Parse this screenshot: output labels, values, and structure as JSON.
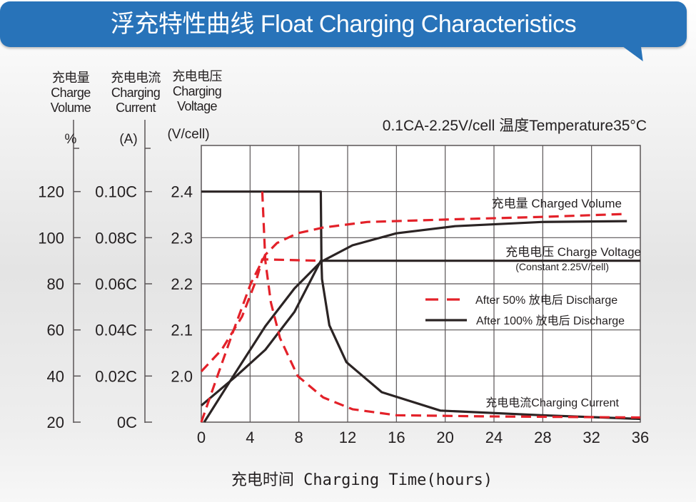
{
  "title": "浮充特性曲线 Float Charging Characteristics",
  "chart_data": {
    "type": "line",
    "title": "浮充特性曲线 Float Charging Characteristics",
    "condition": "0.1CA-2.25V/cell   温度Temperature35°C",
    "xlabel": "充电时间 Charging Time(hours)",
    "xlim": [
      0,
      36
    ],
    "xticks": [
      "0",
      "4",
      "8",
      "12",
      "16",
      "20",
      "24",
      "28",
      "32",
      "36"
    ],
    "grid": true,
    "axes": {
      "volume": {
        "label_lines": [
          "充电量",
          "Charge",
          "Volume"
        ],
        "unit": "%",
        "ylim": [
          20,
          140
        ],
        "ticks": [
          {
            "v": 120,
            "label": "120"
          },
          {
            "v": 100,
            "label": "100"
          },
          {
            "v": 80,
            "label": "80"
          },
          {
            "v": 60,
            "label": "60"
          },
          {
            "v": 40,
            "label": "40"
          },
          {
            "v": 20,
            "label": "20"
          }
        ]
      },
      "current": {
        "label_lines": [
          "充电电流",
          "Charging",
          "Current"
        ],
        "unit": "(A)",
        "ylim": [
          0,
          0.12
        ],
        "ticks": [
          {
            "v": 0.1,
            "label": "0.10C"
          },
          {
            "v": 0.08,
            "label": "0.08C"
          },
          {
            "v": 0.06,
            "label": "0.06C"
          },
          {
            "v": 0.04,
            "label": "0.04C"
          },
          {
            "v": 0.02,
            "label": "0.02C"
          },
          {
            "v": 0,
            "label": "0C"
          }
        ]
      },
      "voltage": {
        "label_lines": [
          "充电电压",
          "Charging",
          "Voltage"
        ],
        "unit": "(V/cell)",
        "ylim": [
          1.9,
          2.5
        ],
        "ticks": [
          {
            "v": 2.4,
            "label": "2.4"
          },
          {
            "v": 2.3,
            "label": "2.3"
          },
          {
            "v": 2.2,
            "label": "2.2"
          },
          {
            "v": 2.1,
            "label": "2.1"
          },
          {
            "v": 2.0,
            "label": "2.0"
          }
        ]
      }
    },
    "annotations": {
      "charged_volume": "充电量 Charged Volume",
      "charge_voltage": "充电电压 Charge Voltage",
      "constant": "(Constant 2.25V/cell)",
      "charging_current": "充电电流Charging Current"
    },
    "legend": {
      "placement": "center-right",
      "entries": [
        {
          "label": "After 50% 放电后 Discharge",
          "style": "dashed",
          "color": "#e32129"
        },
        {
          "label": "After 100% 放电后 Discharge",
          "style": "solid",
          "color": "#2b2424"
        }
      ]
    },
    "series": [
      {
        "group": "After 100%",
        "quantity": "current",
        "axis": "current",
        "style": "solid",
        "color": "#2b2424",
        "points": [
          [
            0,
            0.1
          ],
          [
            9.8,
            0.1
          ],
          [
            9.85,
            0.07
          ],
          [
            9.9,
            0.062
          ],
          [
            10.5,
            0.042
          ],
          [
            11.9,
            0.026
          ],
          [
            14.8,
            0.013
          ],
          [
            19.6,
            0.005
          ],
          [
            27.9,
            0.003
          ],
          [
            36,
            0.0014
          ]
        ]
      },
      {
        "group": "After 100%",
        "quantity": "voltage",
        "axis": "voltage",
        "style": "solid",
        "color": "#2b2424",
        "points": [
          [
            0,
            1.936
          ],
          [
            2.87,
            2.0
          ],
          [
            5.25,
            2.057
          ],
          [
            7.64,
            2.139
          ],
          [
            9.8,
            2.25
          ],
          [
            36,
            2.25
          ]
        ]
      },
      {
        "group": "After 100%",
        "quantity": "volume",
        "axis": "volume",
        "style": "solid",
        "color": "#2b2424",
        "points": [
          [
            0.24,
            20
          ],
          [
            2.63,
            40
          ],
          [
            5.25,
            61.6
          ],
          [
            7.64,
            78
          ],
          [
            9.8,
            89.5
          ],
          [
            12.4,
            96.7
          ],
          [
            16,
            101.9
          ],
          [
            20.8,
            105
          ],
          [
            27.9,
            106.8
          ],
          [
            34.9,
            107.2
          ]
        ]
      },
      {
        "group": "After 50%",
        "quantity": "current",
        "axis": "current",
        "style": "dashed",
        "color": "#e32129",
        "points": [
          [
            5.0,
            0.1
          ],
          [
            5.25,
            0.07
          ],
          [
            5.7,
            0.052
          ],
          [
            6.45,
            0.0365
          ],
          [
            7.9,
            0.02
          ],
          [
            10,
            0.0107
          ],
          [
            12.4,
            0.0056
          ],
          [
            16,
            0.003
          ],
          [
            23.2,
            0.0025
          ],
          [
            36,
            0.002
          ]
        ]
      },
      {
        "group": "After 50%",
        "quantity": "voltage",
        "axis": "voltage",
        "style": "dashed",
        "color": "#e32129",
        "points": [
          [
            0,
            2.01
          ],
          [
            1.67,
            2.057
          ],
          [
            3.34,
            2.129
          ],
          [
            4.54,
            2.211
          ],
          [
            5.0,
            2.253
          ],
          [
            9.8,
            2.25
          ]
        ]
      },
      {
        "group": "After 50%",
        "quantity": "volume",
        "axis": "volume",
        "style": "dashed",
        "color": "#e32129",
        "points": [
          [
            0,
            20
          ],
          [
            1.19,
            38
          ],
          [
            2.63,
            59.6
          ],
          [
            4.06,
            80.2
          ],
          [
            5.25,
            92.6
          ],
          [
            6.21,
            97.7
          ],
          [
            7.88,
            101.9
          ],
          [
            10,
            104.4
          ],
          [
            13.6,
            106.8
          ],
          [
            20.8,
            108
          ],
          [
            27.9,
            109
          ],
          [
            34.9,
            110.3
          ]
        ]
      }
    ]
  }
}
